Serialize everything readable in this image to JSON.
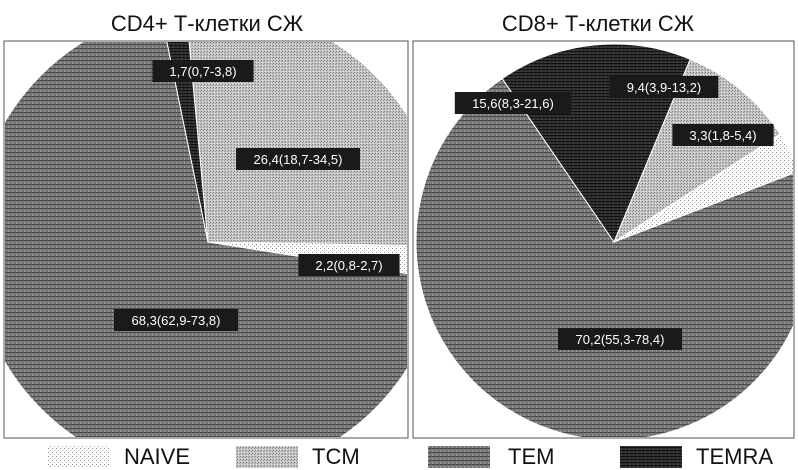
{
  "chart_data": [
    {
      "type": "pie",
      "title": "CD4+ Т-клетки СЖ",
      "categories": [
        "NAIVE",
        "TCM",
        "TEM",
        "TEMRA"
      ],
      "values": [
        2.2,
        26.4,
        68.3,
        1.7
      ],
      "labels": [
        "2,2(0,8-2,7)",
        "26,4(18,7-34,5)",
        "68,3(62,9-73,8)",
        "1,7(0,7-3,8)"
      ]
    },
    {
      "type": "pie",
      "title": "CD8+ Т-клетки СЖ",
      "categories": [
        "NAIVE",
        "TCM",
        "TEM",
        "TEMRA"
      ],
      "values": [
        3.3,
        9.4,
        70.2,
        15.6
      ],
      "labels": [
        "3,3(1,8-5,4)",
        "9,4(3,9-13,2)",
        "70,2(55,3-78,4)",
        "15,6(8,3-21,6)"
      ]
    }
  ],
  "legend": [
    {
      "key": "naive",
      "label": "NAIVE"
    },
    {
      "key": "tcm",
      "label": "TCM"
    },
    {
      "key": "tem",
      "label": "TEM"
    },
    {
      "key": "temra",
      "label": "TEMRA"
    }
  ]
}
